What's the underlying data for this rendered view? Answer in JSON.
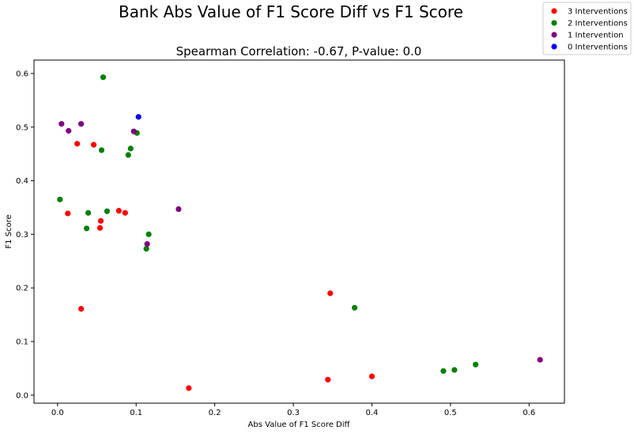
{
  "chart_data": {
    "type": "scatter",
    "title": "Bank Abs Value of F1 Score Diff vs F1 Score",
    "subtitle": "Spearman Correlation: -0.67, P-value: 0.0",
    "xlabel": "Abs Value of F1 Score Diff",
    "ylabel": "F1 Score",
    "xlim": [
      -0.03,
      0.645
    ],
    "ylim": [
      -0.015,
      0.625
    ],
    "xticks": [
      0.0,
      0.1,
      0.2,
      0.3,
      0.4,
      0.5,
      0.6
    ],
    "xtick_labels": [
      "0.0",
      "0.1",
      "0.2",
      "0.3",
      "0.4",
      "0.5",
      "0.6"
    ],
    "yticks": [
      0.0,
      0.1,
      0.2,
      0.3,
      0.4,
      0.5,
      0.6
    ],
    "ytick_labels": [
      "0.0",
      "0.1",
      "0.2",
      "0.3",
      "0.4",
      "0.5",
      "0.6"
    ],
    "grid": false,
    "legend_position": "top-right",
    "series": [
      {
        "name": "3 Interventions",
        "color": "#ff0000",
        "points": [
          [
            0.025,
            0.469
          ],
          [
            0.046,
            0.467
          ],
          [
            0.013,
            0.339
          ],
          [
            0.078,
            0.344
          ],
          [
            0.086,
            0.34
          ],
          [
            0.055,
            0.325
          ],
          [
            0.054,
            0.312
          ],
          [
            0.03,
            0.161
          ],
          [
            0.167,
            0.013
          ],
          [
            0.347,
            0.19
          ],
          [
            0.344,
            0.029
          ],
          [
            0.4,
            0.035
          ]
        ]
      },
      {
        "name": "2 Interventions",
        "color": "#008000",
        "points": [
          [
            0.058,
            0.593
          ],
          [
            0.101,
            0.489
          ],
          [
            0.093,
            0.46
          ],
          [
            0.056,
            0.457
          ],
          [
            0.09,
            0.448
          ],
          [
            0.003,
            0.365
          ],
          [
            0.039,
            0.34
          ],
          [
            0.063,
            0.343
          ],
          [
            0.037,
            0.311
          ],
          [
            0.116,
            0.3
          ],
          [
            0.113,
            0.273
          ],
          [
            0.378,
            0.163
          ],
          [
            0.491,
            0.045
          ],
          [
            0.505,
            0.047
          ],
          [
            0.532,
            0.057
          ]
        ]
      },
      {
        "name": "1 Intervention",
        "color": "#800080",
        "points": [
          [
            0.005,
            0.506
          ],
          [
            0.03,
            0.506
          ],
          [
            0.014,
            0.493
          ],
          [
            0.097,
            0.492
          ],
          [
            0.154,
            0.347
          ],
          [
            0.114,
            0.282
          ],
          [
            0.614,
            0.066
          ]
        ]
      },
      {
        "name": "0 Interventions",
        "color": "#0000ff",
        "points": [
          [
            0.103,
            0.519
          ]
        ]
      }
    ]
  }
}
